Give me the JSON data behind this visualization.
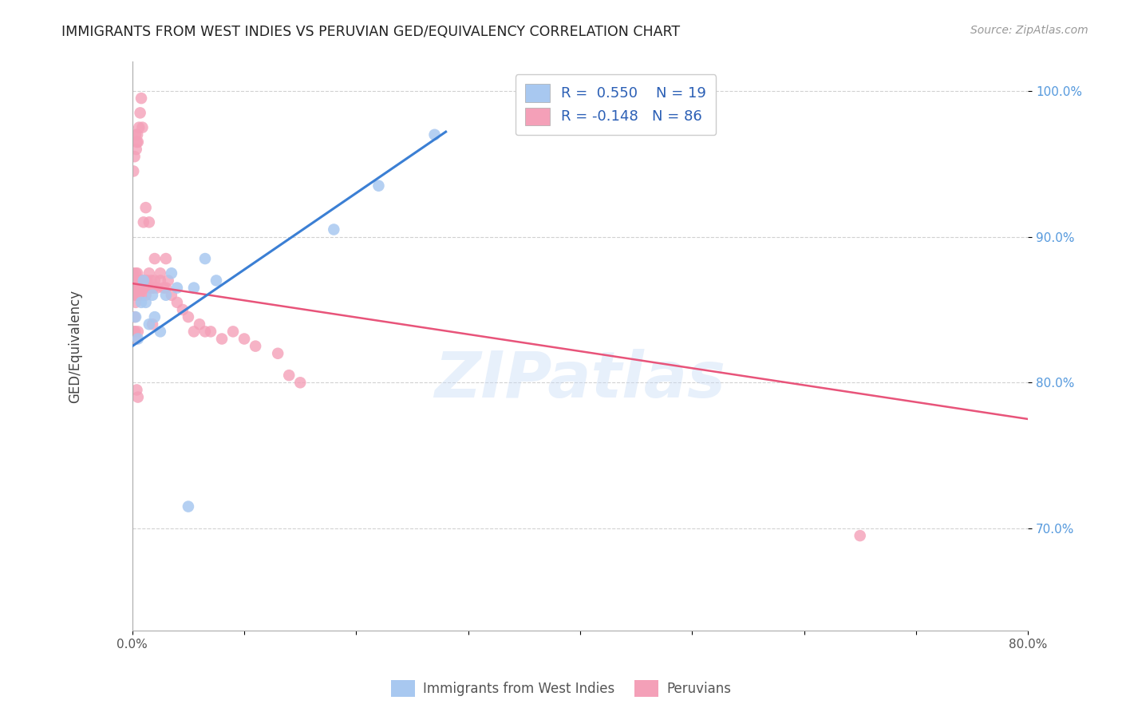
{
  "title": "IMMIGRANTS FROM WEST INDIES VS PERUVIAN GED/EQUIVALENCY CORRELATION CHART",
  "source": "Source: ZipAtlas.com",
  "ylabel": "GED/Equivalency",
  "blue_R": 0.55,
  "blue_N": 19,
  "pink_R": -0.148,
  "pink_N": 86,
  "blue_label": "Immigrants from West Indies",
  "pink_label": "Peruvians",
  "blue_color": "#a8c8f0",
  "pink_color": "#f4a0b8",
  "blue_line_color": "#3b7fd4",
  "pink_line_color": "#e8547a",
  "legend_text_color": "#2b5fb5",
  "watermark": "ZIPatlas",
  "xlim": [
    0,
    80
  ],
  "ylim": [
    63,
    102
  ],
  "y_ticks": [
    70,
    80,
    90,
    100
  ],
  "y_tick_labels": [
    "70.0%",
    "80.0%",
    "90.0%",
    "100.0%"
  ],
  "x_ticks": [
    0,
    10,
    20,
    30,
    40,
    50,
    60,
    70,
    80
  ],
  "x_tick_labels": [
    "0.0%",
    "",
    "",
    "",
    "",
    "",
    "",
    "",
    "80.0%"
  ],
  "blue_x": [
    0.3,
    0.5,
    0.8,
    1.2,
    1.5,
    2.0,
    2.5,
    3.0,
    3.5,
    4.0,
    5.0,
    5.5,
    6.5,
    7.5,
    1.0,
    1.8,
    18.0,
    22.0,
    27.0
  ],
  "blue_y": [
    84.5,
    83.0,
    85.5,
    85.5,
    84.0,
    84.5,
    83.5,
    86.0,
    87.5,
    86.5,
    71.5,
    86.5,
    88.5,
    87.0,
    87.0,
    86.0,
    90.5,
    93.5,
    97.0
  ],
  "pink_x": [
    0.05,
    0.1,
    0.12,
    0.15,
    0.18,
    0.2,
    0.22,
    0.25,
    0.28,
    0.3,
    0.32,
    0.35,
    0.38,
    0.4,
    0.42,
    0.45,
    0.48,
    0.5,
    0.55,
    0.6,
    0.65,
    0.7,
    0.75,
    0.8,
    0.85,
    0.9,
    0.95,
    1.0,
    1.1,
    1.2,
    1.3,
    1.4,
    1.5,
    1.6,
    1.7,
    1.8,
    1.9,
    2.0,
    2.2,
    2.5,
    2.8,
    3.0,
    3.2,
    3.5,
    4.0,
    4.5,
    5.0,
    5.5,
    6.0,
    6.5,
    7.0,
    8.0,
    9.0,
    10.0,
    11.0,
    13.0,
    14.0,
    15.0,
    0.1,
    0.2,
    0.3,
    0.35,
    0.4,
    0.45,
    0.5,
    0.6,
    0.7,
    0.8,
    0.9,
    1.0,
    1.2,
    1.5,
    2.0,
    3.0,
    2.5,
    0.3,
    0.2,
    1.8,
    0.15,
    0.25,
    0.35,
    0.5,
    65.0,
    0.4,
    0.5
  ],
  "pink_y": [
    87.5,
    87.0,
    86.5,
    87.0,
    86.5,
    87.0,
    86.5,
    87.0,
    86.0,
    87.5,
    86.5,
    86.0,
    87.0,
    86.5,
    86.0,
    87.5,
    86.5,
    87.0,
    86.5,
    86.0,
    87.0,
    86.5,
    87.0,
    86.5,
    86.0,
    87.0,
    86.5,
    87.0,
    86.5,
    86.0,
    87.0,
    86.5,
    87.5,
    86.5,
    87.0,
    86.5,
    86.5,
    87.0,
    86.5,
    87.0,
    86.5,
    86.5,
    87.0,
    86.0,
    85.5,
    85.0,
    84.5,
    83.5,
    84.0,
    83.5,
    83.5,
    83.0,
    83.5,
    83.0,
    82.5,
    82.0,
    80.5,
    80.0,
    94.5,
    95.5,
    97.0,
    96.0,
    96.5,
    97.0,
    96.5,
    97.5,
    98.5,
    99.5,
    97.5,
    91.0,
    92.0,
    91.0,
    88.5,
    88.5,
    87.5,
    85.5,
    84.5,
    84.0,
    83.5,
    83.5,
    83.0,
    83.5,
    69.5,
    79.5,
    79.0
  ],
  "pink_line_x0": 0,
  "pink_line_y0": 86.8,
  "pink_line_x1": 80,
  "pink_line_y1": 77.5,
  "blue_line_x0": 0,
  "blue_line_y0": 82.5,
  "blue_line_x1": 28,
  "blue_line_y1": 97.2
}
